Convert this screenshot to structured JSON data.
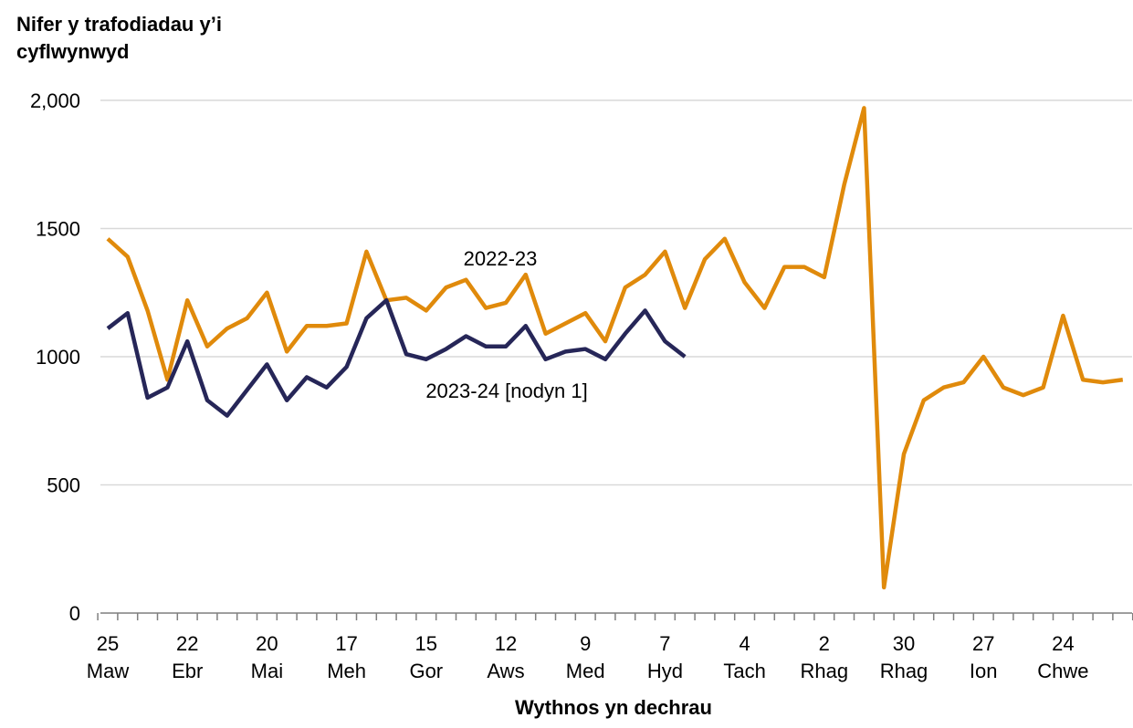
{
  "chart_data": {
    "type": "line",
    "y_label": "Nifer y trafodiadau y’i cyflwynwyd",
    "x_label": "Wythnos yn dechrau",
    "categories": [
      "25 Maw",
      null,
      null,
      null,
      "22 Ebr",
      null,
      null,
      null,
      "20 Mai",
      null,
      null,
      null,
      "17 Meh",
      null,
      null,
      null,
      "15 Gor",
      null,
      null,
      null,
      "12 Aws",
      null,
      null,
      null,
      "9 Med",
      null,
      null,
      null,
      "7 Hyd",
      null,
      null,
      null,
      "4 Tach",
      null,
      null,
      null,
      "2 Rhag",
      null,
      null,
      null,
      "30 Rhag",
      null,
      null,
      null,
      "27 Ion",
      null,
      null,
      null,
      "24 Chwe",
      null,
      null,
      null
    ],
    "series": [
      {
        "name": "2022-23",
        "color": "#e08a0b",
        "values": [
          1460,
          1390,
          1180,
          910,
          1220,
          1040,
          1110,
          1150,
          1250,
          1020,
          1120,
          1120,
          1130,
          1410,
          1220,
          1230,
          1180,
          1270,
          1300,
          1190,
          1210,
          1320,
          1090,
          1130,
          1170,
          1060,
          1270,
          1320,
          1410,
          1190,
          1380,
          1460,
          1290,
          1190,
          1350,
          1350,
          1310,
          1670,
          1970,
          100,
          620,
          830,
          880,
          900,
          1000,
          880,
          850,
          880,
          1160,
          910,
          900,
          910
        ]
      },
      {
        "name": "2023-24 [nodyn 1]",
        "color": "#262658",
        "values": [
          1110,
          1170,
          840,
          880,
          1060,
          830,
          770,
          870,
          970,
          830,
          920,
          880,
          960,
          1150,
          1220,
          1010,
          990,
          1030,
          1080,
          1040,
          1040,
          1120,
          990,
          1020,
          1030,
          990,
          1090,
          1180,
          1060,
          1000,
          null,
          null,
          null,
          null,
          null,
          null,
          null,
          null,
          null,
          null,
          null,
          null,
          null,
          null,
          null,
          null,
          null,
          null,
          null,
          null,
          null,
          null
        ]
      }
    ],
    "ylim": [
      0,
      2000
    ],
    "yticks": [
      0,
      500,
      1000,
      1500,
      {
        "value": 2000,
        "label": "2,000"
      }
    ],
    "grid": true
  }
}
